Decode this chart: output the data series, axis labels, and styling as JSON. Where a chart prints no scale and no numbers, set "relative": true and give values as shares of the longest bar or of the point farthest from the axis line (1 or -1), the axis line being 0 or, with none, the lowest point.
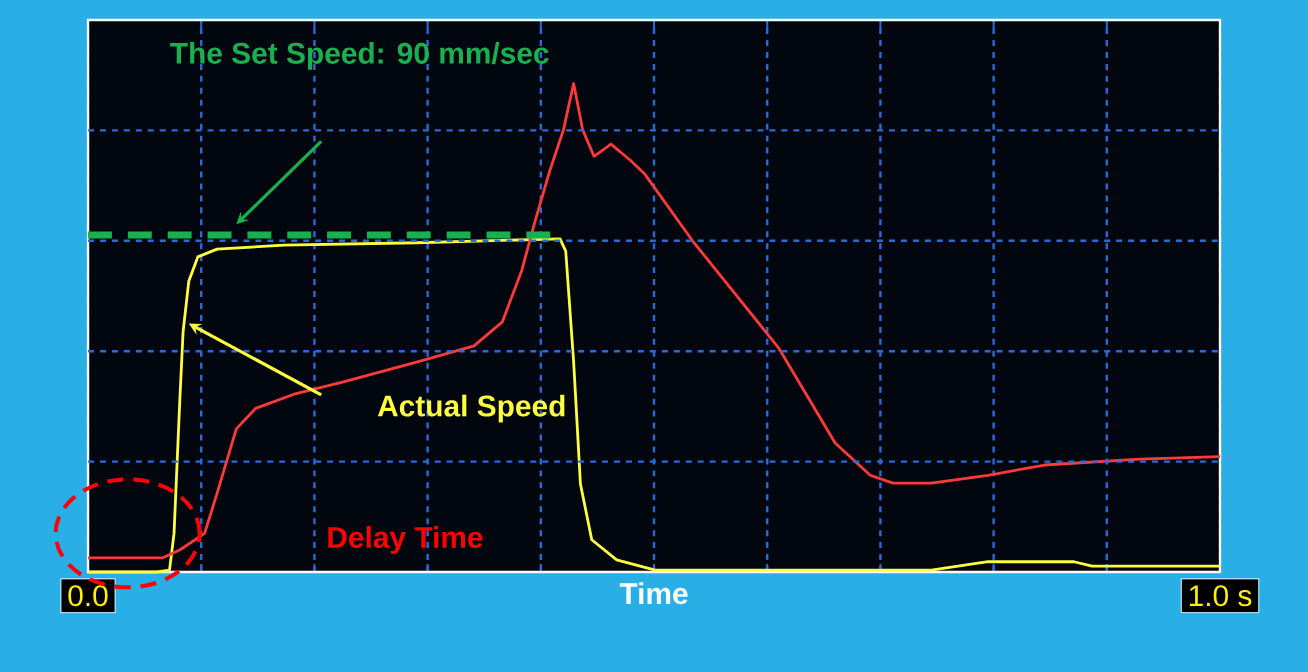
{
  "chart_data": {
    "type": "line",
    "relative": true,
    "xlabel": "Time",
    "xlim": [
      0,
      1
    ],
    "xticks": [
      {
        "value": 0,
        "label": "0.0"
      },
      {
        "value": 0.1,
        "label": null
      },
      {
        "value": 0.2,
        "label": null
      },
      {
        "value": 0.3,
        "label": null
      },
      {
        "value": 0.4,
        "label": null
      },
      {
        "value": 0.5,
        "label": null
      },
      {
        "value": 0.6,
        "label": null
      },
      {
        "value": 0.7,
        "label": null
      },
      {
        "value": 0.8,
        "label": null
      },
      {
        "value": 0.9,
        "label": null
      },
      {
        "value": 1,
        "label": "1.0 s"
      }
    ],
    "grid": true,
    "marker": "none",
    "line_style": "solid",
    "series": [
      {
        "color": "#ffff40",
        "x": [
          0,
          0.061,
          0.072,
          0.076,
          0.081,
          0.084,
          0.089,
          0.097,
          0.114,
          0.173,
          0.291,
          0.417,
          0.422,
          0.429,
          0.435,
          0.445,
          0.467,
          0.501,
          0.745,
          0.795,
          0.871,
          0.887,
          1.0
        ],
        "values": [
          0,
          0,
          0.004,
          0.079,
          0.347,
          0.492,
          0.595,
          0.645,
          0.661,
          0.669,
          0.674,
          0.682,
          0.657,
          0.43,
          0.18,
          0.066,
          0.025,
          0.004,
          0.004,
          0.021,
          0.021,
          0.012,
          0.012
        ]
      },
      {
        "color": "#ff3a3a",
        "x": [
          0,
          0.066,
          0.081,
          0.103,
          0.114,
          0.131,
          0.148,
          0.182,
          0.224,
          0.291,
          0.341,
          0.366,
          0.383,
          0.395,
          0.408,
          0.42,
          0.429,
          0.437,
          0.447,
          0.462,
          0.479,
          0.492,
          0.534,
          0.61,
          0.66,
          0.691,
          0.711,
          0.745,
          0.795,
          0.845,
          0.929,
          1.0
        ],
        "values": [
          0.029,
          0.029,
          0.045,
          0.079,
          0.161,
          0.293,
          0.335,
          0.364,
          0.388,
          0.43,
          0.463,
          0.512,
          0.616,
          0.719,
          0.822,
          0.905,
          1.0,
          0.905,
          0.851,
          0.876,
          0.843,
          0.814,
          0.678,
          0.459,
          0.264,
          0.198,
          0.182,
          0.182,
          0.198,
          0.219,
          0.231,
          0.236
        ]
      },
      {
        "color": "#19b050",
        "line_style": "dashed",
        "x": [
          0,
          0.415
        ],
        "values": [
          0.69,
          0.69
        ]
      }
    ],
    "annotations": [
      "The Set Speed: 90 mm/sec",
      "Actual Speed",
      "Delay Time"
    ]
  }
}
